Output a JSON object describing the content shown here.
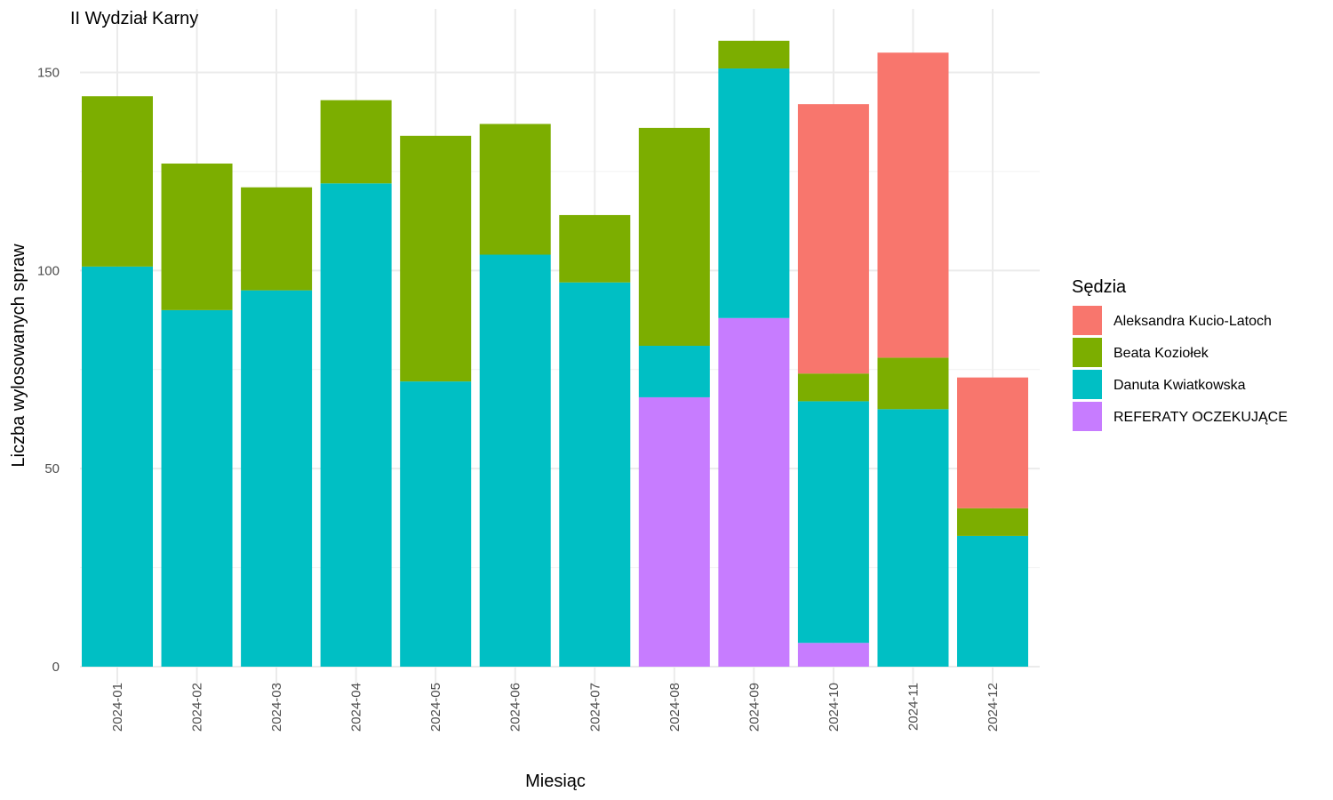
{
  "chart_data": {
    "type": "bar",
    "stacked": true,
    "title": "II Wydział Karny",
    "xlabel": "Miesiąc",
    "ylabel": "Liczba wylosowanych spraw",
    "ylim": [
      0,
      160
    ],
    "yticks": [
      0,
      50,
      100,
      150
    ],
    "grid": true,
    "legend_position": "right",
    "legend_title": "Sędzia",
    "categories": [
      "2024-01",
      "2024-02",
      "2024-03",
      "2024-04",
      "2024-05",
      "2024-06",
      "2024-07",
      "2024-08",
      "2024-09",
      "2024-10",
      "2024-11",
      "2024-12"
    ],
    "series": [
      {
        "name": "REFERATY OCZEKUJĄCE",
        "color": "#C77CFF",
        "values": [
          0,
          0,
          0,
          0,
          0,
          0,
          0,
          68,
          88,
          6,
          0,
          0
        ]
      },
      {
        "name": "Danuta Kwiatkowska",
        "color": "#00BFC4",
        "values": [
          101,
          90,
          95,
          122,
          72,
          104,
          97,
          13,
          63,
          61,
          65,
          33
        ]
      },
      {
        "name": "Beata Koziołek",
        "color": "#7CAE00",
        "values": [
          43,
          37,
          26,
          21,
          62,
          33,
          17,
          55,
          7,
          7,
          13,
          7
        ]
      },
      {
        "name": "Aleksandra Kucio-Latoch",
        "color": "#F8766D",
        "values": [
          0,
          0,
          0,
          0,
          0,
          0,
          0,
          0,
          0,
          68,
          77,
          33
        ]
      }
    ],
    "legend_order": [
      "Aleksandra Kucio-Latoch",
      "Beata Koziołek",
      "Danuta Kwiatkowska",
      "REFERATY OCZEKUJĄCE"
    ]
  }
}
